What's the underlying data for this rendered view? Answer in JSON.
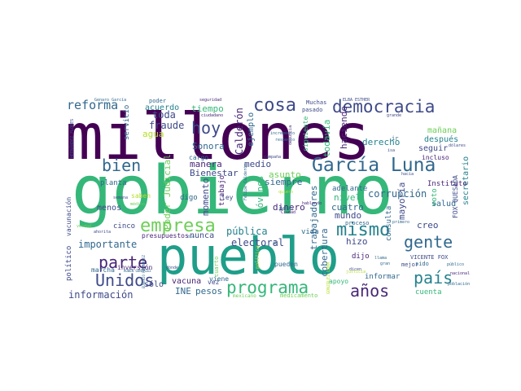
{
  "palette": {
    "deep_purple": "#440154",
    "purple": "#482677",
    "indigo": "#3e4a89",
    "blue": "#31688e",
    "teal": "#26828e",
    "green_teal": "#1f9e89",
    "green": "#35b779",
    "lime": "#6ece58",
    "yellow_green": "#b5de2b",
    "yellow": "#fde725"
  },
  "words": {
    "millones": "millones",
    "gobierno": "gobierno",
    "pueblo": "pueblo",
    "democracia": "democracia",
    "garcia_luna": "García Luna",
    "cosa": "cosa",
    "reforma": "reforma",
    "hoy": "hoy",
    "bien": "bien",
    "mismo": "mismo",
    "empresa": "empresa",
    "gente": "gente",
    "parte": "parte",
    "unidos": "Unidos",
    "programa": "programa",
    "pais": "país",
    "anos": "años",
    "tiempo": "tiempo",
    "toda": "toda",
    "acuerdo": "acuerdo",
    "fraude": "fraude",
    "agua": "agua",
    "sonora": "Sonora",
    "calderon": "Calderón",
    "ejemplo": "ejemplo",
    "haciendo": "haciendo",
    "todavia": "todavía",
    "derecho": "derecho",
    "corrupcion": "corrupción",
    "salud": "salud",
    "seguir": "seguir",
    "despues": "después",
    "manana": "mañana",
    "secretario": "secretario",
    "incluso": "incluso",
    "instituto": "Instituto",
    "manera": "manera",
    "medio": "medio",
    "asunto": "asunto",
    "bienestar": "Bienestar",
    "poder_judicial": "Poder Judicial",
    "jovenes": "jóvenes",
    "siempre": "siempre",
    "dinero": "dinero",
    "adelante": "adelante",
    "nivel": "nivel",
    "mundo": "mundo",
    "cuatro": "cuatro",
    "trabajadores": "trabajadores",
    "mayoria": "mayoría",
    "creo": "creo",
    "voto": "voto",
    "fox_quesada": "FOX QUESADA",
    "vicente_fox": "VICENTE FOX",
    "importante": "importante",
    "menos": "menos",
    "momento": "momento",
    "publica": "pública",
    "electoral": "electoral",
    "cobertura": "cobertura",
    "hizo": "hizo",
    "consulta": "consulta",
    "vacunacion": "vacunación",
    "politico": "político",
    "cinco": "cinco",
    "presupuestos": "presupuestos",
    "nunca": "nunca",
    "vacuna": "vacuna",
    "ine": "INE",
    "pesos": "pesos",
    "informacion": "información",
    "solo": "sólo",
    "marcha": "marcha",
    "inversion": "inversión",
    "servicio": "servicio",
    "cargo": "cargo",
    "poder": "poder",
    "trabajo": "trabajo",
    "muchas": "Muchas",
    "pasado": "pasado",
    "peso": "peso",
    "vida": "vida",
    "apoyo": "apoyo",
    "informar": "informar",
    "dijo": "dijo",
    "pueden": "pueden",
    "medicamento": "medicamento",
    "mejor": "mejor",
    "sido": "sido",
    "cuenta": "cuenta",
    "planta": "planta",
    "digo": "digo",
    "saben": "saben",
    "vez": "vez",
    "ley": "ley",
    "viene": "viene",
    "proceso": "proceso",
    "seguridad": "seguridad",
    "elba_esther": "ELBA ESTHER",
    "genaro_garcia": "Genaro García",
    "hernandez_flores": "HERNÁNDEZ FLORES",
    "ahorita": "ahorita",
    "cuarto": "cuarto",
    "grande": "grande",
    "ciudadano": "ciudadano",
    "mexicano": "mexicano",
    "frente": "frente",
    "campana": "campaña",
    "respecto": "respecto",
    "ciudad": "Ciudad",
    "dicen": "dicen",
    "hacia": "hacia",
    "politica": "política",
    "publico": "público",
    "semana": "semana",
    "dolares": "dólares",
    "primero": "primero",
    "llama": "llama",
    "gran": "gran",
    "justicia": "justicia",
    "donde": "dónde",
    "medico": "médico",
    "verdad": "verdad",
    "ir": "ir",
    "isa": "isa",
    "ah": "ah",
    "dio": "dio",
    "quiero": "quiero",
    "hablando": "hablando",
    "nacional": "nacional",
    "poblacion": "población",
    "incremento": "incremento",
    "denuncia": "denuncia",
    "siguiente": "siguiente",
    "felipe_calderon": "Felipe Calderón",
    "ruben_gonzalez": "RUBÉN GONZÁLEZ",
    "eugenio_hernandez": "EUGENIO HERNÁNDEZ",
    "gonzalez_luna": "GONZÁLEZ LUNA",
    "vez2": "voz",
    "nacion": "nación",
    "cabo": "cabo",
    "permite": "permite",
    "escenario": "escenario",
    "cuando": "cuando",
    "hospitales": "hospitales",
    "conocer": "conocer",
    "gasolina": "gasolina",
    "entonces": "entonces",
    "publicas": "pública"
  }
}
